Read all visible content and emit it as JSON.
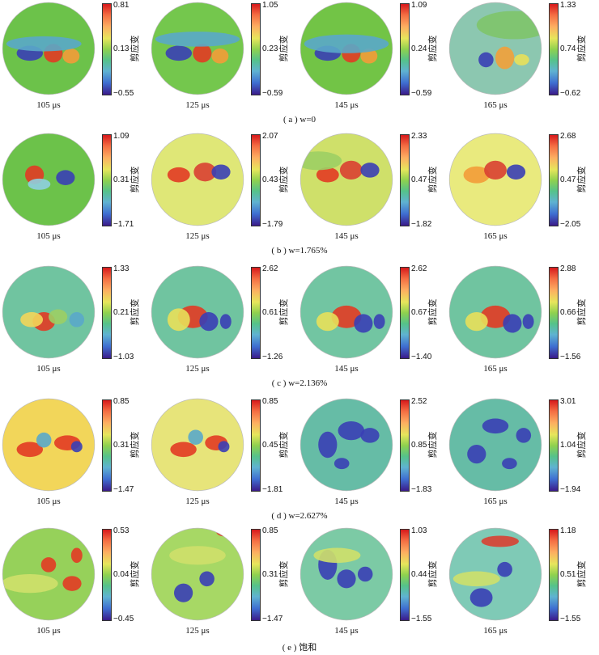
{
  "colorbar_label": "剪应变",
  "rows": [
    {
      "caption": "( a ) w=0",
      "panels": [
        {
          "time": "105 μs",
          "max": "0.81",
          "mid": "0.13",
          "min": "−0.55"
        },
        {
          "time": "125 μs",
          "max": "1.05",
          "mid": "0.23",
          "min": "−0.59"
        },
        {
          "time": "145 μs",
          "max": "1.09",
          "mid": "0.24",
          "min": "−0.59"
        },
        {
          "time": "165 μs",
          "max": "1.33",
          "mid": "0.74",
          "min": "−0.62"
        }
      ]
    },
    {
      "caption": "( b ) w=1.765%",
      "panels": [
        {
          "time": "105 μs",
          "max": "1.09",
          "mid": "0.31",
          "min": "−1.71"
        },
        {
          "time": "125 μs",
          "max": "2.07",
          "mid": "0.43",
          "min": "−1.79"
        },
        {
          "time": "145 μs",
          "max": "2.33",
          "mid": "0.47",
          "min": "−1.82"
        },
        {
          "time": "165 μs",
          "max": "2.68",
          "mid": "0.47",
          "min": "−2.05"
        }
      ]
    },
    {
      "caption": "( c ) w=2.136%",
      "panels": [
        {
          "time": "105 μs",
          "max": "1.33",
          "mid": "0.21",
          "min": "−1.03"
        },
        {
          "time": "125 μs",
          "max": "2.62",
          "mid": "0.61",
          "min": "−1.26"
        },
        {
          "time": "145 μs",
          "max": "2.62",
          "mid": "0.67",
          "min": "−1.40"
        },
        {
          "time": "165 μs",
          "max": "2.88",
          "mid": "0.66",
          "min": "−1.56"
        }
      ]
    },
    {
      "caption": "( d ) w=2.627%",
      "panels": [
        {
          "time": "105 μs",
          "max": "0.85",
          "mid": "0.31",
          "min": "−1.47"
        },
        {
          "time": "125 μs",
          "max": "0.85",
          "mid": "0.45",
          "min": "−1.81"
        },
        {
          "time": "145 μs",
          "max": "2.52",
          "mid": "0.85",
          "min": "−1.83"
        },
        {
          "time": "165 μs",
          "max": "3.01",
          "mid": "1.04",
          "min": "−1.94"
        }
      ]
    },
    {
      "caption": "( e ) 饱和",
      "panels": [
        {
          "time": "105 μs",
          "max": "0.53",
          "mid": "0.04",
          "min": "−0.45"
        },
        {
          "time": "125 μs",
          "max": "0.85",
          "mid": "0.31",
          "min": "−1.47"
        },
        {
          "time": "145 μs",
          "max": "1.03",
          "mid": "0.44",
          "min": "−1.55"
        },
        {
          "time": "165 μs",
          "max": "1.18",
          "mid": "0.51",
          "min": "−1.55"
        }
      ]
    }
  ]
}
